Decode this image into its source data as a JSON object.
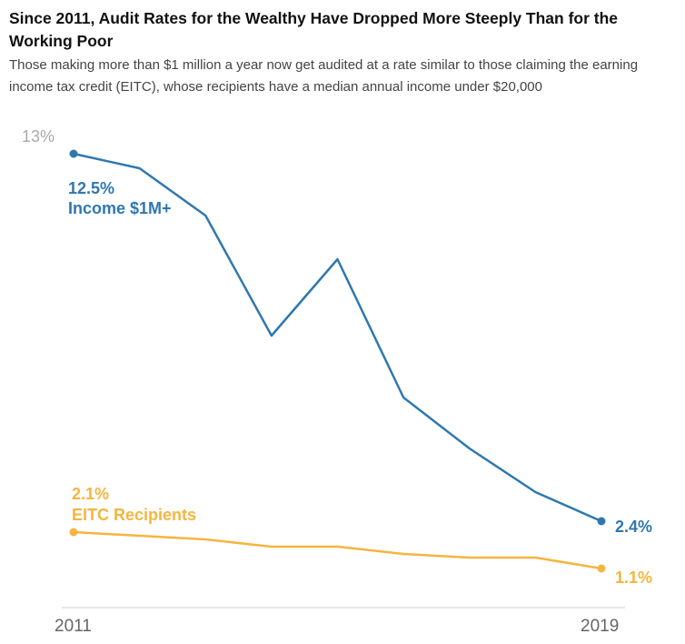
{
  "title": "Since 2011, Audit Rates for the Wealthy Have Dropped More Steeply Than for the Working Poor",
  "subtitle": "Those making more than $1 million a year now get audited at a rate similar to those claiming the earning income tax credit (EITC), whose recipients have a median annual income under $20,000",
  "chart_data": {
    "type": "line",
    "x": [
      2011,
      2012,
      2013,
      2014,
      2015,
      2016,
      2017,
      2018,
      2019
    ],
    "x_tick_labels": [
      "2011",
      "2019"
    ],
    "y_tick_labels": [
      "13%"
    ],
    "ylim": [
      0,
      13
    ],
    "grid": false,
    "series": [
      {
        "name": "Income $1M+",
        "color": "#2f78ae",
        "values": [
          12.5,
          12.1,
          10.8,
          7.5,
          9.6,
          5.8,
          4.4,
          3.2,
          2.4
        ],
        "start_label": "12.5%",
        "end_label": "2.4%"
      },
      {
        "name": "EITC Recipients",
        "color": "#f5b53f",
        "values": [
          2.1,
          2.0,
          1.9,
          1.7,
          1.7,
          1.5,
          1.4,
          1.4,
          1.1
        ],
        "start_label": "2.1%",
        "end_label": "1.1%"
      }
    ]
  }
}
